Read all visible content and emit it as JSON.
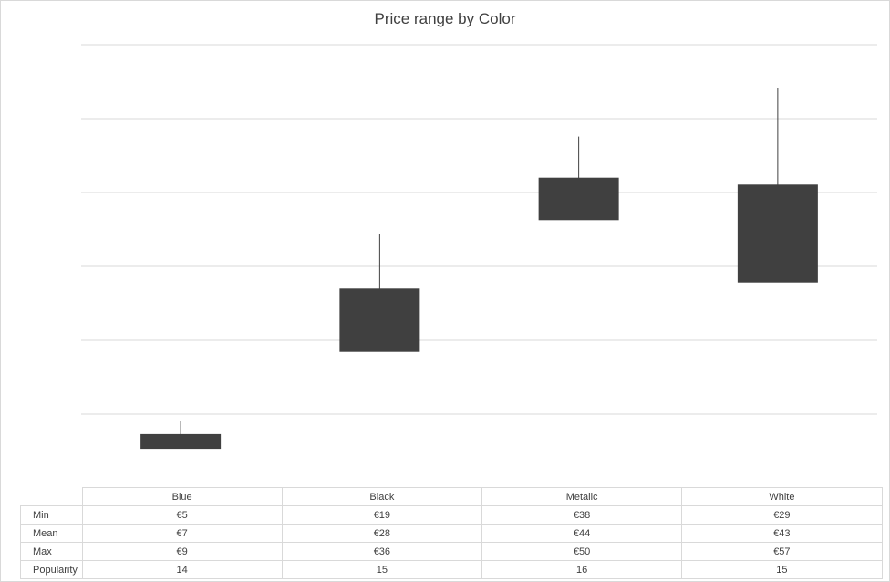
{
  "chart_data": {
    "type": "candlestick",
    "title": "Price range by Color",
    "categories": [
      "Blue",
      "Black",
      "Metalic",
      "White"
    ],
    "series": [
      {
        "name": "Min",
        "values": [
          5,
          19,
          38,
          29
        ]
      },
      {
        "name": "Mean",
        "values": [
          7,
          28,
          44,
          43
        ]
      },
      {
        "name": "Max",
        "values": [
          9,
          36,
          50,
          57
        ]
      },
      {
        "name": "Popularity",
        "values": [
          14,
          15,
          16,
          15
        ]
      }
    ],
    "table": {
      "rows": [
        {
          "label": "Min",
          "cells": [
            "€5",
            "€19",
            "€38",
            "€29"
          ]
        },
        {
          "label": "Mean",
          "cells": [
            "€7",
            "€28",
            "€44",
            "€43"
          ]
        },
        {
          "label": "Max",
          "cells": [
            "€9",
            "€36",
            "€50",
            "€57"
          ]
        },
        {
          "label": "Popularity",
          "cells": [
            "14",
            "15",
            "16",
            "15"
          ]
        }
      ]
    },
    "gridlines": true,
    "colors": {
      "down_box": "#404040",
      "up_box": "#ffffff",
      "box_outline": "#404040",
      "wick": "#404040",
      "grid": "#d9d9d9"
    }
  }
}
